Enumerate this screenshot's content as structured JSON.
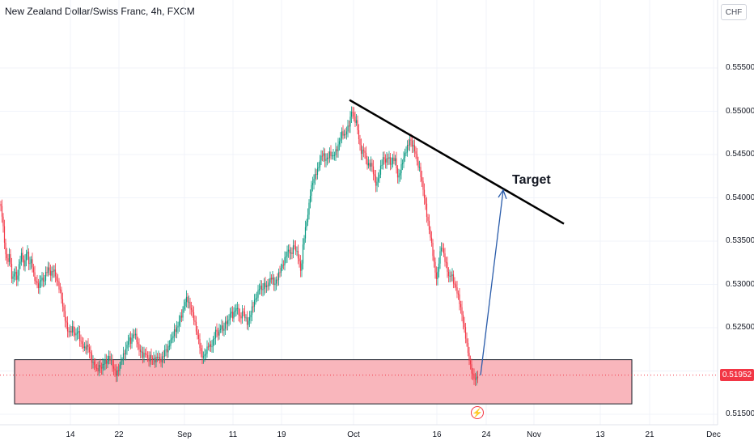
{
  "header": {
    "title": "New Zealand Dollar/Swiss Franc, 4h, FXCM",
    "currency_button": "CHF"
  },
  "annotations": {
    "target_label": "Target",
    "event_icon": "lightning-icon"
  },
  "chart_data": {
    "type": "candlestick",
    "title": "New Zealand Dollar/Swiss Franc, 4h, FXCM",
    "y_axis": {
      "position": "right",
      "unit": "CHF",
      "ticks": [
        "0.55500",
        "0.55000",
        "0.54500",
        "0.54000",
        "0.53500",
        "0.53000",
        "0.52500",
        "0.52000",
        "0.51500"
      ],
      "ylim": [
        0.514,
        0.5595
      ]
    },
    "x_axis": {
      "ticks": [
        "14",
        "22",
        "Sep",
        "11",
        "19",
        "Oct",
        "16",
        "24",
        "Nov",
        "13",
        "21",
        "Dec"
      ]
    },
    "last_price": "0.51952",
    "colors": {
      "up": "#089981",
      "down": "#f23645",
      "support_zone_fill": "#f9b6bc",
      "arrow": "#2a5caa",
      "trendline": "#000000",
      "price_label": "#f23645"
    },
    "close_path": [
      [
        0,
        0.5393
      ],
      [
        3,
        0.5378
      ],
      [
        6,
        0.5342
      ],
      [
        9,
        0.5325
      ],
      [
        12,
        0.5335
      ],
      [
        15,
        0.5302
      ],
      [
        18,
        0.5317
      ],
      [
        21,
        0.5304
      ],
      [
        24,
        0.5325
      ],
      [
        27,
        0.5336
      ],
      [
        30,
        0.5318
      ],
      [
        33,
        0.5342
      ],
      [
        36,
        0.5322
      ],
      [
        39,
        0.5329
      ],
      [
        42,
        0.5308
      ],
      [
        45,
        0.5302
      ],
      [
        48,
        0.5297
      ],
      [
        51,
        0.5309
      ],
      [
        54,
        0.5302
      ],
      [
        57,
        0.5314
      ],
      [
        60,
        0.5319
      ],
      [
        63,
        0.531
      ],
      [
        66,
        0.5319
      ],
      [
        69,
        0.5308
      ],
      [
        72,
        0.53
      ],
      [
        75,
        0.529
      ],
      [
        78,
        0.5272
      ],
      [
        81,
        0.5258
      ],
      [
        84,
        0.5245
      ],
      [
        87,
        0.5245
      ],
      [
        90,
        0.525
      ],
      [
        93,
        0.5239
      ],
      [
        96,
        0.5248
      ],
      [
        99,
        0.5235
      ],
      [
        102,
        0.523
      ],
      [
        105,
        0.5225
      ],
      [
        108,
        0.523
      ],
      [
        111,
        0.5222
      ],
      [
        114,
        0.521
      ],
      [
        117,
        0.5207
      ],
      [
        120,
        0.52
      ],
      [
        123,
        0.5206
      ],
      [
        126,
        0.5203
      ],
      [
        129,
        0.5212
      ],
      [
        132,
        0.5209
      ],
      [
        135,
        0.5217
      ],
      [
        138,
        0.521
      ],
      [
        141,
        0.5201
      ],
      [
        144,
        0.5196
      ],
      [
        147,
        0.5203
      ],
      [
        150,
        0.5212
      ],
      [
        153,
        0.5219
      ],
      [
        156,
        0.5226
      ],
      [
        159,
        0.5238
      ],
      [
        162,
        0.5233
      ],
      [
        165,
        0.5244
      ],
      [
        168,
        0.524
      ],
      [
        171,
        0.5227
      ],
      [
        174,
        0.5222
      ],
      [
        177,
        0.5217
      ],
      [
        180,
        0.5222
      ],
      [
        183,
        0.5212
      ],
      [
        186,
        0.5217
      ],
      [
        189,
        0.5214
      ],
      [
        192,
        0.5212
      ],
      [
        195,
        0.5218
      ],
      [
        198,
        0.5211
      ],
      [
        201,
        0.5215
      ],
      [
        204,
        0.5225
      ],
      [
        207,
        0.5223
      ],
      [
        210,
        0.5233
      ],
      [
        213,
        0.5239
      ],
      [
        216,
        0.5247
      ],
      [
        219,
        0.5249
      ],
      [
        222,
        0.526
      ],
      [
        225,
        0.5265
      ],
      [
        228,
        0.5278
      ],
      [
        231,
        0.5285
      ],
      [
        234,
        0.5276
      ],
      [
        237,
        0.527
      ],
      [
        240,
        0.5259
      ],
      [
        243,
        0.5245
      ],
      [
        246,
        0.5234
      ],
      [
        249,
        0.5218
      ],
      [
        252,
        0.5216
      ],
      [
        255,
        0.5223
      ],
      [
        258,
        0.5231
      ],
      [
        261,
        0.5227
      ],
      [
        264,
        0.5236
      ],
      [
        267,
        0.5248
      ],
      [
        270,
        0.5241
      ],
      [
        273,
        0.5253
      ],
      [
        276,
        0.5246
      ],
      [
        279,
        0.5257
      ],
      [
        282,
        0.5256
      ],
      [
        285,
        0.5269
      ],
      [
        288,
        0.5262
      ],
      [
        291,
        0.5273
      ],
      [
        294,
        0.5271
      ],
      [
        297,
        0.5259
      ],
      [
        300,
        0.527
      ],
      [
        303,
        0.5262
      ],
      [
        306,
        0.5254
      ],
      [
        309,
        0.5263
      ],
      [
        312,
        0.5274
      ],
      [
        315,
        0.5282
      ],
      [
        318,
        0.5287
      ],
      [
        321,
        0.5299
      ],
      [
        324,
        0.5293
      ],
      [
        327,
        0.5301
      ],
      [
        330,
        0.5296
      ],
      [
        333,
        0.5304
      ],
      [
        336,
        0.5309
      ],
      [
        339,
        0.5299
      ],
      [
        342,
        0.5305
      ],
      [
        345,
        0.5313
      ],
      [
        348,
        0.532
      ],
      [
        351,
        0.5325
      ],
      [
        354,
        0.5336
      ],
      [
        357,
        0.534
      ],
      [
        360,
        0.5333
      ],
      [
        363,
        0.5346
      ],
      [
        366,
        0.5339
      ],
      [
        369,
        0.5331
      ],
      [
        372,
        0.5313
      ],
      [
        375,
        0.535
      ],
      [
        378,
        0.5367
      ],
      [
        381,
        0.5384
      ],
      [
        384,
        0.5409
      ],
      [
        387,
        0.542
      ],
      [
        390,
        0.5427
      ],
      [
        393,
        0.5433
      ],
      [
        396,
        0.5445
      ],
      [
        399,
        0.5452
      ],
      [
        402,
        0.5443
      ],
      [
        405,
        0.5446
      ],
      [
        408,
        0.5452
      ],
      [
        411,
        0.5447
      ],
      [
        414,
        0.5452
      ],
      [
        417,
        0.5457
      ],
      [
        420,
        0.5467
      ],
      [
        423,
        0.5476
      ],
      [
        426,
        0.5471
      ],
      [
        429,
        0.5479
      ],
      [
        432,
        0.5486
      ],
      [
        435,
        0.5503
      ],
      [
        438,
        0.549
      ],
      [
        441,
        0.5487
      ],
      [
        444,
        0.5464
      ],
      [
        447,
        0.5451
      ],
      [
        450,
        0.5457
      ],
      [
        453,
        0.5441
      ],
      [
        456,
        0.5437
      ],
      [
        459,
        0.544
      ],
      [
        462,
        0.5427
      ],
      [
        465,
        0.5414
      ],
      [
        468,
        0.5424
      ],
      [
        471,
        0.5437
      ],
      [
        474,
        0.5447
      ],
      [
        477,
        0.5441
      ],
      [
        480,
        0.5449
      ],
      [
        483,
        0.5437
      ],
      [
        486,
        0.5446
      ],
      [
        489,
        0.5443
      ],
      [
        492,
        0.542
      ],
      [
        495,
        0.5433
      ],
      [
        498,
        0.5443
      ],
      [
        501,
        0.5452
      ],
      [
        504,
        0.546
      ],
      [
        507,
        0.5468
      ],
      [
        510,
        0.546
      ],
      [
        513,
        0.5455
      ],
      [
        516,
        0.5439
      ],
      [
        519,
        0.5432
      ],
      [
        522,
        0.5415
      ],
      [
        525,
        0.5398
      ],
      [
        528,
        0.5377
      ],
      [
        531,
        0.5361
      ],
      [
        534,
        0.5343
      ],
      [
        537,
        0.532
      ],
      [
        540,
        0.5304
      ],
      [
        543,
        0.5331
      ],
      [
        546,
        0.5346
      ],
      [
        549,
        0.5332
      ],
      [
        552,
        0.5321
      ],
      [
        555,
        0.5307
      ],
      [
        558,
        0.5313
      ],
      [
        561,
        0.5301
      ],
      [
        564,
        0.5295
      ],
      [
        567,
        0.5284
      ],
      [
        570,
        0.527
      ],
      [
        573,
        0.5254
      ],
      [
        576,
        0.5237
      ],
      [
        579,
        0.5218
      ],
      [
        582,
        0.5203
      ],
      [
        585,
        0.5193
      ],
      [
        588,
        0.519
      ],
      [
        591,
        0.5195
      ]
    ],
    "trendline": {
      "start": [
        "Sep 29",
        0.5513
      ],
      "end": [
        "Nov 8",
        0.537
      ]
    },
    "support_zone": {
      "high": 0.5213,
      "low": 0.5162
    },
    "projection_arrow": {
      "start": 0.5195,
      "end": 0.5409
    }
  }
}
